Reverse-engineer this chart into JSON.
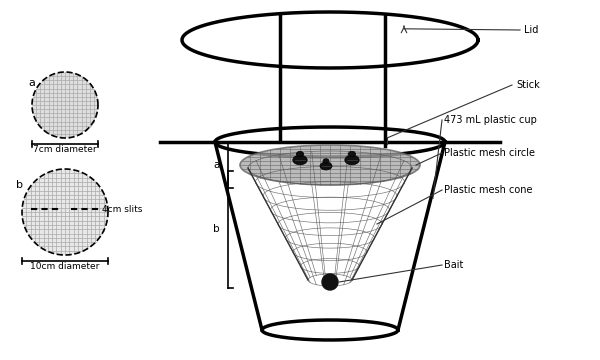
{
  "bg_color": "#ffffff",
  "line_color": "#000000",
  "gray_line": "#666666",
  "label_fontsize": 7,
  "small_label_fontsize": 6.5,
  "labels": {
    "lid": "Lid",
    "stick": "Stick",
    "cup": "473 mL plastic cup",
    "mesh_circle": "Plastic mesh circle",
    "mesh_cone": "Plastic mesh cone",
    "bait": "Bait",
    "diam_a": "7cm diameter",
    "diam_b": "10cm diameter",
    "slits": "4cm slits",
    "label_a": "a",
    "label_b": "b"
  }
}
